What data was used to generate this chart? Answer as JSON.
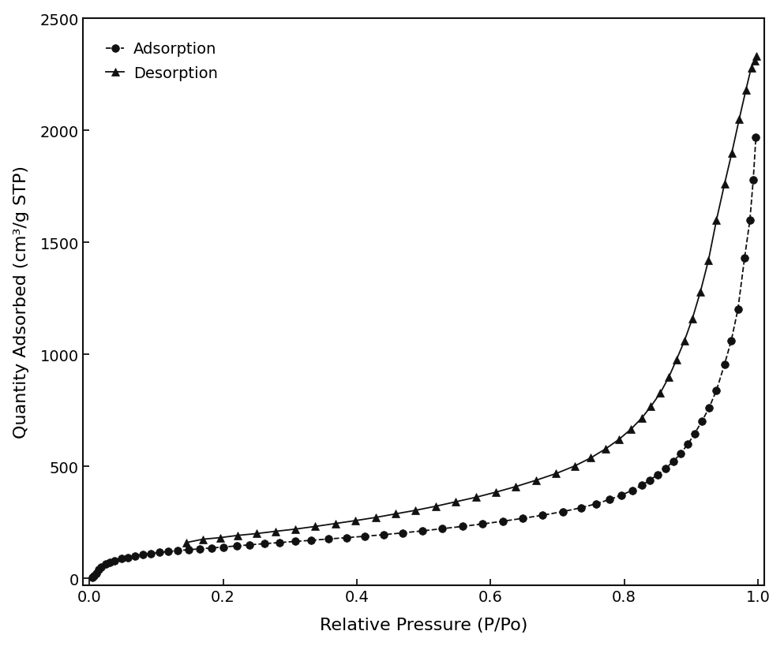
{
  "adsorption_x": [
    0.004,
    0.007,
    0.01,
    0.014,
    0.018,
    0.024,
    0.03,
    0.038,
    0.048,
    0.058,
    0.068,
    0.08,
    0.092,
    0.105,
    0.118,
    0.132,
    0.148,
    0.165,
    0.183,
    0.2,
    0.22,
    0.24,
    0.262,
    0.284,
    0.308,
    0.332,
    0.358,
    0.385,
    0.412,
    0.44,
    0.468,
    0.498,
    0.528,
    0.558,
    0.588,
    0.618,
    0.648,
    0.678,
    0.708,
    0.735,
    0.758,
    0.778,
    0.796,
    0.812,
    0.826,
    0.838,
    0.85,
    0.862,
    0.874,
    0.884,
    0.895,
    0.905,
    0.916,
    0.927,
    0.938,
    0.95,
    0.96,
    0.97,
    0.98,
    0.988,
    0.993,
    0.997
  ],
  "adsorption_y": [
    5,
    12,
    22,
    38,
    52,
    63,
    72,
    80,
    88,
    94,
    100,
    106,
    111,
    116,
    120,
    124,
    128,
    132,
    136,
    140,
    145,
    150,
    155,
    160,
    165,
    170,
    176,
    182,
    188,
    195,
    203,
    212,
    222,
    232,
    243,
    255,
    268,
    282,
    298,
    315,
    333,
    352,
    372,
    393,
    415,
    438,
    463,
    492,
    523,
    557,
    598,
    645,
    700,
    762,
    840,
    955,
    1060,
    1200,
    1430,
    1600,
    1780,
    1970
  ],
  "desorption_x": [
    0.145,
    0.17,
    0.196,
    0.222,
    0.25,
    0.278,
    0.308,
    0.338,
    0.368,
    0.398,
    0.428,
    0.458,
    0.488,
    0.518,
    0.548,
    0.578,
    0.608,
    0.638,
    0.668,
    0.698,
    0.726,
    0.75,
    0.772,
    0.792,
    0.81,
    0.826,
    0.84,
    0.854,
    0.867,
    0.878,
    0.89,
    0.902,
    0.914,
    0.926,
    0.938,
    0.95,
    0.961,
    0.972,
    0.982,
    0.99,
    0.995,
    0.998
  ],
  "desorption_y": [
    160,
    175,
    182,
    192,
    200,
    210,
    220,
    232,
    245,
    258,
    272,
    288,
    304,
    322,
    342,
    362,
    385,
    410,
    438,
    468,
    502,
    538,
    578,
    620,
    666,
    715,
    768,
    828,
    900,
    975,
    1060,
    1160,
    1280,
    1420,
    1600,
    1760,
    1900,
    2050,
    2180,
    2280,
    2310,
    2330
  ],
  "xlabel": "Relative Pressure (P/Po)",
  "ylabel": "Quantity Adsorbed (cm³/g STP)",
  "xlim": [
    -0.01,
    1.01
  ],
  "ylim": [
    -30,
    2500
  ],
  "yticks": [
    0,
    500,
    1000,
    1500,
    2000,
    2500
  ],
  "xticks": [
    0.0,
    0.2,
    0.4,
    0.6,
    0.8,
    1.0
  ],
  "marker_color": "#111111",
  "line_color": "#111111",
  "background_color": "#ffffff",
  "legend_adsorption": "Adsorption",
  "legend_desorption": "Desorption",
  "label_fontsize": 16,
  "tick_fontsize": 14,
  "legend_fontsize": 14,
  "marker_size": 7
}
